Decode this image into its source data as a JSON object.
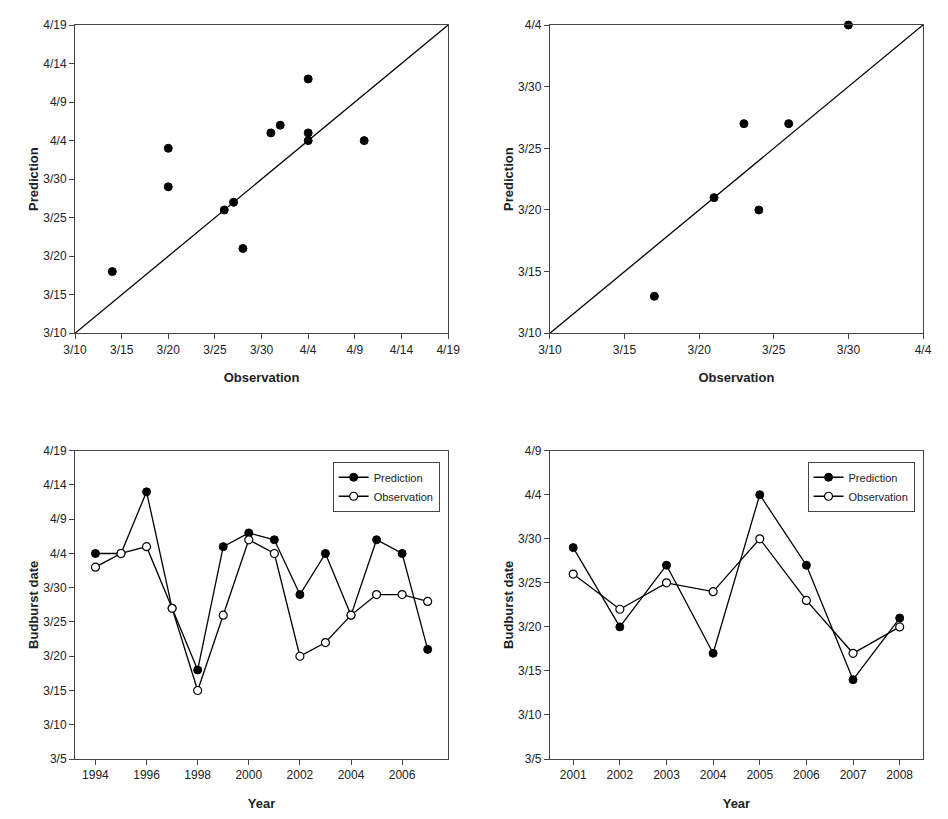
{
  "chart_data": [
    {
      "type": "scatter",
      "xlabel": "Observation",
      "ylabel": "Prediction",
      "series": [
        {
          "type": "scatter",
          "color": "black",
          "marker": "circle",
          "x": [
            13,
            19,
            19,
            25,
            26,
            27,
            30,
            31,
            34,
            34,
            34,
            40
          ],
          "values": [
            17,
            28,
            33,
            25,
            26,
            20,
            35,
            36,
            35,
            34,
            42,
            34
          ]
        },
        {
          "type": "line",
          "color": "black",
          "line_style": "solid",
          "x": [
            9,
            49
          ],
          "values": [
            9,
            49
          ]
        }
      ],
      "xlim": [
        9,
        49
      ],
      "ylim": [
        9,
        49
      ],
      "xticks": [
        {
          "value": 9,
          "label": "3/10"
        },
        {
          "value": 14,
          "label": "3/15"
        },
        {
          "value": 19,
          "label": "3/20"
        },
        {
          "value": 24,
          "label": "3/25"
        },
        {
          "value": 29,
          "label": "3/30"
        },
        {
          "value": 34,
          "label": "4/4"
        },
        {
          "value": 39,
          "label": "4/9"
        },
        {
          "value": 44,
          "label": "4/14"
        },
        {
          "value": 49,
          "label": "4/19"
        }
      ],
      "yticks": [
        {
          "value": 9,
          "label": "3/10"
        },
        {
          "value": 14,
          "label": "3/15"
        },
        {
          "value": 19,
          "label": "3/20"
        },
        {
          "value": 24,
          "label": "3/25"
        },
        {
          "value": 29,
          "label": "3/30"
        },
        {
          "value": 34,
          "label": "4/4"
        },
        {
          "value": 39,
          "label": "4/9"
        },
        {
          "value": 44,
          "label": "4/14"
        },
        {
          "value": 49,
          "label": "4/19"
        }
      ],
      "grid": false
    },
    {
      "type": "scatter",
      "xlabel": "Observation",
      "ylabel": "Prediction",
      "series": [
        {
          "type": "scatter",
          "color": "black",
          "marker": "circle",
          "x": [
            16,
            20,
            22,
            23,
            25,
            29
          ],
          "values": [
            12,
            20,
            26,
            19,
            26,
            34
          ]
        },
        {
          "type": "line",
          "color": "black",
          "line_style": "solid",
          "x": [
            9,
            34
          ],
          "values": [
            9,
            34
          ]
        }
      ],
      "xlim": [
        9,
        34
      ],
      "ylim": [
        9,
        34
      ],
      "xticks": [
        {
          "value": 9,
          "label": "3/10"
        },
        {
          "value": 14,
          "label": "3/15"
        },
        {
          "value": 19,
          "label": "3/20"
        },
        {
          "value": 24,
          "label": "3/25"
        },
        {
          "value": 29,
          "label": "3/30"
        },
        {
          "value": 34,
          "label": "4/4"
        }
      ],
      "yticks": [
        {
          "value": 9,
          "label": "3/10"
        },
        {
          "value": 14,
          "label": "3/15"
        },
        {
          "value": 19,
          "label": "3/20"
        },
        {
          "value": 24,
          "label": "3/25"
        },
        {
          "value": 29,
          "label": "3/30"
        },
        {
          "value": 34,
          "label": "4/4"
        }
      ],
      "grid": false
    },
    {
      "type": "line",
      "xlabel": "Year",
      "ylabel": "Budburst date",
      "x": [
        1994,
        1995,
        1996,
        1997,
        1998,
        1999,
        2000,
        2001,
        2002,
        2003,
        2004,
        2005,
        2006,
        2007
      ],
      "series": [
        {
          "name": "Prediction",
          "color": "black",
          "marker": "circle",
          "values": [
            34,
            34,
            43,
            26,
            17,
            35,
            37,
            36,
            28,
            34,
            25,
            36,
            34,
            20
          ]
        },
        {
          "name": "Observation",
          "color": "black",
          "marker": "circle-open",
          "values": [
            32,
            34,
            35,
            26,
            14,
            25,
            36,
            34,
            19,
            21,
            25,
            28,
            28,
            27
          ]
        }
      ],
      "xlim": [
        1993.2,
        2007.8
      ],
      "ylim": [
        4,
        49
      ],
      "xticks": [
        1994,
        1996,
        1998,
        2000,
        2002,
        2004,
        2006
      ],
      "yticks": [
        {
          "value": 4,
          "label": "3/5"
        },
        {
          "value": 9,
          "label": "3/10"
        },
        {
          "value": 14,
          "label": "3/15"
        },
        {
          "value": 19,
          "label": "3/20"
        },
        {
          "value": 24,
          "label": "3/25"
        },
        {
          "value": 29,
          "label": "3/30"
        },
        {
          "value": 34,
          "label": "4/4"
        },
        {
          "value": 39,
          "label": "4/9"
        },
        {
          "value": 44,
          "label": "4/14"
        },
        {
          "value": 49,
          "label": "4/19"
        }
      ],
      "legend": "upper right",
      "grid": false
    },
    {
      "type": "line",
      "xlabel": "Year",
      "ylabel": "Budburst date",
      "x": [
        2001,
        2002,
        2003,
        2004,
        2005,
        2006,
        2007,
        2008
      ],
      "series": [
        {
          "name": "Prediction",
          "color": "black",
          "marker": "circle",
          "values": [
            28,
            19,
            26,
            16,
            34,
            26,
            13,
            20
          ]
        },
        {
          "name": "Observation",
          "color": "black",
          "marker": "circle-open",
          "values": [
            25,
            21,
            24,
            23,
            29,
            22,
            16,
            19
          ]
        }
      ],
      "xlim": [
        2000.5,
        2008.5
      ],
      "ylim": [
        4,
        39
      ],
      "xticks": [
        2001,
        2002,
        2003,
        2004,
        2005,
        2006,
        2007,
        2008
      ],
      "yticks": [
        {
          "value": 4,
          "label": "3/5"
        },
        {
          "value": 9,
          "label": "3/10"
        },
        {
          "value": 14,
          "label": "3/15"
        },
        {
          "value": 19,
          "label": "3/20"
        },
        {
          "value": 24,
          "label": "3/25"
        },
        {
          "value": 29,
          "label": "3/30"
        },
        {
          "value": 34,
          "label": "4/4"
        },
        {
          "value": 39,
          "label": "4/9"
        }
      ],
      "legend": "upper right",
      "grid": false
    }
  ]
}
